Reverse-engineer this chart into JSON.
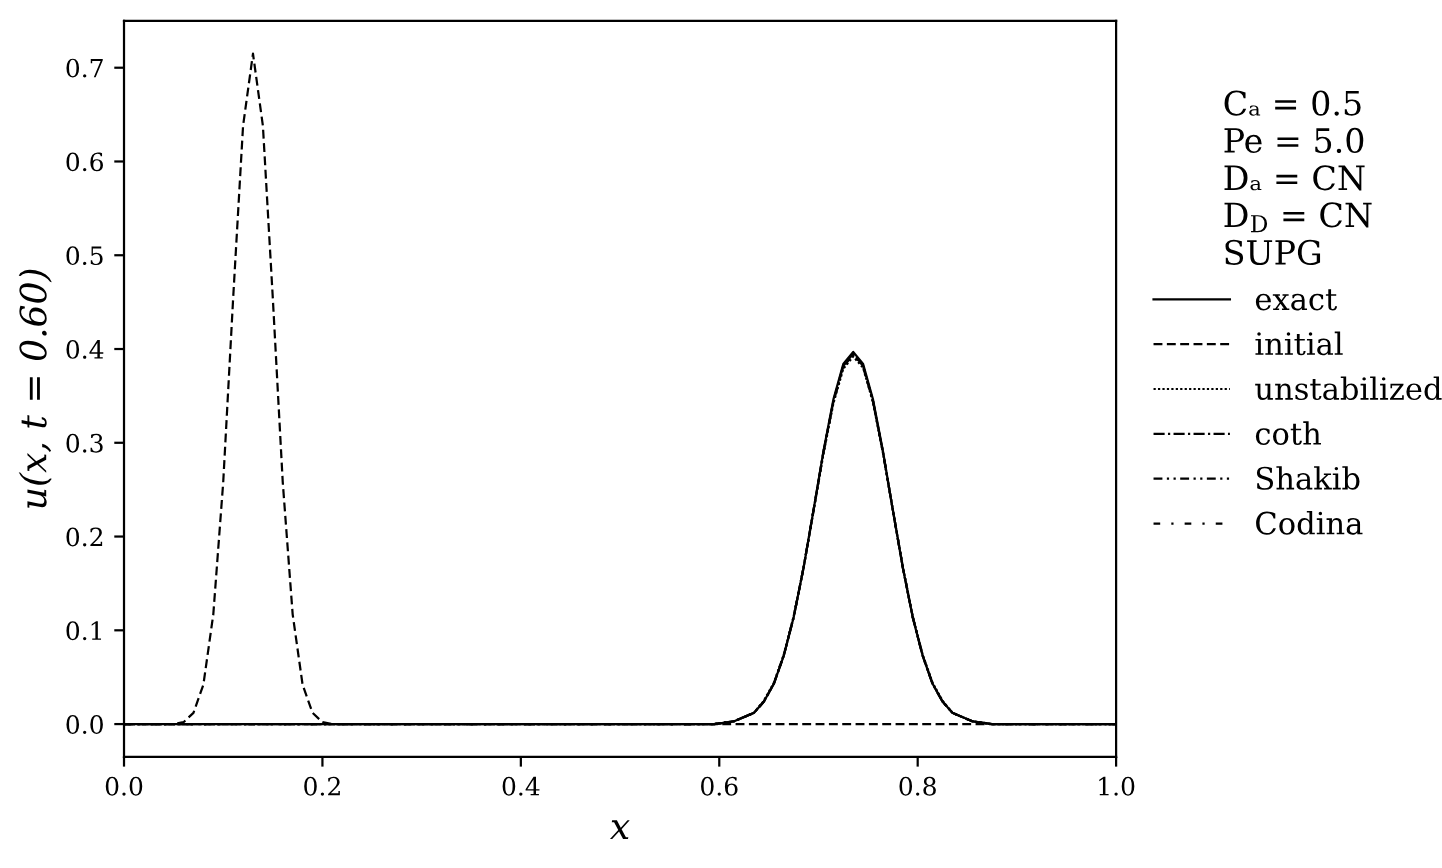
{
  "chart_data": {
    "type": "line",
    "xlabel": "x",
    "ylabel": "u(x, t = 0.60)",
    "legend_title": "Cₐ = 0.5\nPe = 5.0\nDₐ = CN\nD$_{D}$ = CN\nSUPG",
    "xlim": [
      0.0,
      1.0
    ],
    "xticks": [
      {
        "value": 0,
        "label": "0.0"
      },
      0.2,
      0.4,
      0.6,
      0.8,
      {
        "value": 1,
        "label": "1.0"
      }
    ],
    "ylim": [
      -0.035,
      0.75
    ],
    "yticks": [
      {
        "value": 0,
        "label": "0.0"
      },
      0.1,
      0.2,
      0.3,
      0.4,
      0.5,
      0.6,
      0.7
    ],
    "legend": "right",
    "grid": false,
    "series": [
      {
        "name": "exact",
        "color": "#000000",
        "line_style": "solid",
        "x": [
          0.0,
          0.595,
          0.615,
          0.635,
          0.645,
          0.655,
          0.665,
          0.675,
          0.685,
          0.695,
          0.705,
          0.715,
          0.725,
          0.735,
          0.745,
          0.755,
          0.765,
          0.775,
          0.785,
          0.795,
          0.805,
          0.815,
          0.825,
          0.835,
          0.855,
          0.875,
          1.0
        ],
        "values": [
          0,
          0,
          0.003,
          0.012,
          0.024,
          0.043,
          0.073,
          0.114,
          0.167,
          0.228,
          0.291,
          0.346,
          0.384,
          0.397,
          0.384,
          0.346,
          0.291,
          0.228,
          0.167,
          0.114,
          0.073,
          0.043,
          0.024,
          0.012,
          0.003,
          0,
          0
        ]
      },
      {
        "name": "initial",
        "color": "#000000",
        "line_style": "dashed",
        "x": [
          0.0,
          0.05,
          0.06,
          0.07,
          0.08,
          0.09,
          0.1,
          0.11,
          0.12,
          0.13,
          0.14,
          0.15,
          0.16,
          0.17,
          0.18,
          0.19,
          0.2,
          0.21,
          1.0
        ],
        "values": [
          0,
          0,
          0.002,
          0.012,
          0.042,
          0.117,
          0.258,
          0.454,
          0.638,
          0.715,
          0.638,
          0.454,
          0.258,
          0.117,
          0.042,
          0.012,
          0.002,
          0,
          0
        ]
      },
      {
        "name": "unstabilized",
        "color": "#000000",
        "line_style": "dotted",
        "x": [
          0.0,
          0.595,
          0.615,
          0.635,
          0.645,
          0.655,
          0.665,
          0.675,
          0.685,
          0.695,
          0.705,
          0.715,
          0.725,
          0.735,
          0.745,
          0.755,
          0.765,
          0.775,
          0.785,
          0.795,
          0.805,
          0.815,
          0.825,
          0.835,
          0.855,
          0.875,
          1.0
        ],
        "values": [
          0,
          0,
          0.003,
          0.012,
          0.025,
          0.044,
          0.074,
          0.115,
          0.167,
          0.227,
          0.288,
          0.342,
          0.379,
          0.392,
          0.38,
          0.343,
          0.289,
          0.228,
          0.168,
          0.115,
          0.074,
          0.044,
          0.025,
          0.012,
          0.003,
          0,
          0
        ]
      },
      {
        "name": "coth",
        "color": "#000000",
        "line_style": "dashdot",
        "x": [
          0.0,
          0.595,
          0.615,
          0.635,
          0.645,
          0.655,
          0.665,
          0.675,
          0.685,
          0.695,
          0.705,
          0.715,
          0.725,
          0.735,
          0.745,
          0.755,
          0.765,
          0.775,
          0.785,
          0.795,
          0.805,
          0.815,
          0.825,
          0.835,
          0.855,
          0.875,
          1.0
        ],
        "values": [
          0,
          0,
          0.003,
          0.012,
          0.024,
          0.043,
          0.073,
          0.114,
          0.167,
          0.228,
          0.29,
          0.344,
          0.382,
          0.395,
          0.382,
          0.344,
          0.29,
          0.228,
          0.167,
          0.114,
          0.073,
          0.043,
          0.024,
          0.012,
          0.003,
          0,
          0
        ]
      },
      {
        "name": "Shakib",
        "color": "#000000",
        "line_style": "dashdotdot",
        "x": [
          0.0,
          0.595,
          0.615,
          0.635,
          0.645,
          0.655,
          0.665,
          0.675,
          0.685,
          0.695,
          0.705,
          0.715,
          0.725,
          0.735,
          0.745,
          0.755,
          0.765,
          0.775,
          0.785,
          0.795,
          0.805,
          0.815,
          0.825,
          0.835,
          0.855,
          0.875,
          1.0
        ],
        "values": [
          0,
          0,
          0.003,
          0.012,
          0.024,
          0.043,
          0.073,
          0.114,
          0.167,
          0.228,
          0.29,
          0.344,
          0.382,
          0.395,
          0.382,
          0.344,
          0.29,
          0.228,
          0.167,
          0.114,
          0.073,
          0.043,
          0.024,
          0.012,
          0.003,
          0,
          0
        ]
      },
      {
        "name": "Codina",
        "color": "#000000",
        "line_style": "loosedashdot",
        "x": [
          0.0,
          0.595,
          0.615,
          0.635,
          0.645,
          0.655,
          0.665,
          0.675,
          0.685,
          0.695,
          0.705,
          0.715,
          0.725,
          0.735,
          0.745,
          0.755,
          0.765,
          0.775,
          0.785,
          0.795,
          0.805,
          0.815,
          0.825,
          0.835,
          0.855,
          0.875,
          1.0
        ],
        "values": [
          0,
          0,
          0.003,
          0.012,
          0.024,
          0.043,
          0.073,
          0.114,
          0.167,
          0.228,
          0.29,
          0.344,
          0.381,
          0.394,
          0.381,
          0.344,
          0.29,
          0.228,
          0.167,
          0.114,
          0.073,
          0.043,
          0.024,
          0.012,
          0.003,
          0,
          0
        ]
      }
    ]
  }
}
